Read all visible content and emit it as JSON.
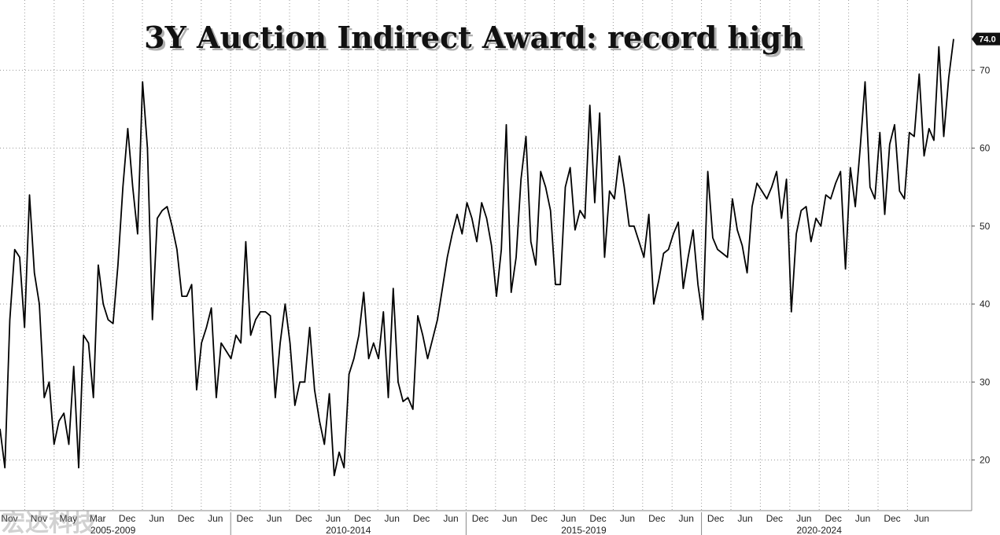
{
  "watermark": "宏达科技",
  "chart_data": {
    "type": "line",
    "title": "3Y Auction Indirect Award: record high",
    "xlabel": "",
    "ylabel": "",
    "ylim": [
      13.5,
      79
    ],
    "y_ticks": [
      20,
      30,
      40,
      50,
      60,
      70
    ],
    "last_value_label": "74.0",
    "grid": true,
    "x_tick_labels": [
      "Nov",
      "Nov",
      "May",
      "Mar",
      "Dec",
      "Jun",
      "Dec",
      "Jun",
      "Dec",
      "Jun",
      "Dec",
      "Jun",
      "Dec",
      "Jun",
      "Dec",
      "Jun",
      "Dec",
      "Jun",
      "Dec",
      "Jun",
      "Dec",
      "Jun",
      "Dec",
      "Jun",
      "Dec",
      "Jun",
      "Dec",
      "Jun",
      "Dec",
      "Jun",
      "Dec",
      "Jun"
    ],
    "period_labels": [
      "2005-2009",
      "2010-2014",
      "2015-2019",
      "2020-2024"
    ],
    "series": [
      {
        "values": [
          24,
          19,
          38,
          47,
          46,
          37,
          54,
          44,
          40,
          28,
          30,
          22,
          25,
          26,
          22,
          32,
          19,
          36,
          35,
          28,
          45,
          40,
          38,
          37.5,
          45,
          55,
          62.5,
          55,
          49,
          68.5,
          60,
          38,
          51,
          52,
          52.5,
          50,
          47,
          41,
          41,
          42.5,
          29,
          35,
          37,
          39.5,
          28,
          35,
          34,
          33,
          36,
          35,
          48,
          36,
          38,
          39,
          39,
          38.5,
          28,
          35,
          40,
          35,
          27,
          30,
          30,
          37,
          29,
          25,
          22,
          28.5,
          18,
          21,
          19,
          31,
          33,
          36,
          41.5,
          33,
          35,
          33,
          39,
          28,
          42,
          30,
          27.5,
          28,
          26.5,
          38.5,
          36,
          33,
          35.5,
          38,
          42,
          46,
          49,
          51.5,
          49,
          53,
          51,
          48,
          53,
          51,
          47.5,
          41,
          47,
          63,
          41.5,
          46,
          56,
          61.5,
          48,
          45,
          57,
          55,
          52,
          42.5,
          42.5,
          55,
          57.5,
          49.5,
          52,
          51,
          65.5,
          53,
          64.5,
          46,
          54.5,
          53.5,
          59,
          55,
          50,
          50,
          48,
          46,
          51.5,
          40,
          43,
          46.5,
          47,
          49,
          50.5,
          42,
          46,
          49.5,
          42.5,
          38,
          57,
          48.5,
          47,
          46.5,
          46,
          53.5,
          49.5,
          47.5,
          44,
          52.5,
          55.5,
          54.5,
          53.5,
          55,
          57,
          51,
          56,
          39,
          49,
          52,
          52.5,
          48,
          51,
          50,
          54,
          53.5,
          55.5,
          57,
          44.5,
          57.5,
          52.5,
          60,
          68.5,
          55,
          53.5,
          62,
          51.5,
          60.5,
          63,
          54.5,
          53.5,
          62,
          61.5,
          69.5,
          59,
          62.5,
          61,
          73,
          61.5,
          69,
          74
        ]
      }
    ]
  }
}
